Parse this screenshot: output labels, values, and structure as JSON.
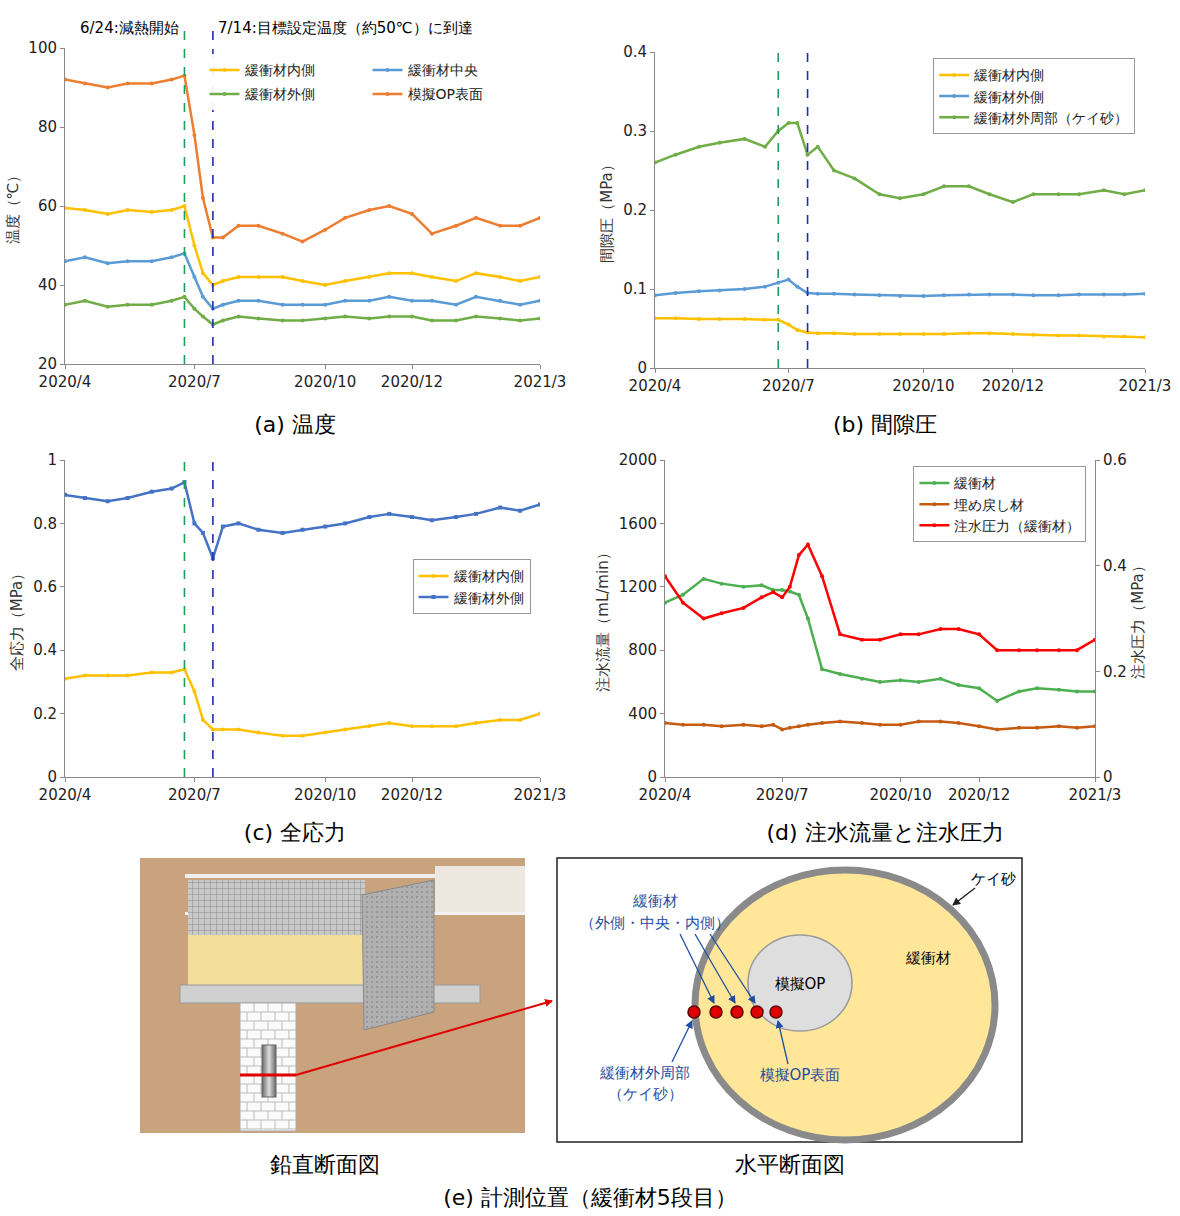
{
  "chart_data": [
    {
      "type": "line",
      "title": "(a) 温度",
      "ylabel": "温度（℃）",
      "grid": false,
      "legend": "top right",
      "x": [
        "2020-04-01",
        "2020-04-15",
        "2020-05-01",
        "2020-05-15",
        "2020-06-01",
        "2020-06-15",
        "2020-06-24",
        "2020-07-01",
        "2020-07-07",
        "2020-07-14",
        "2020-07-21",
        "2020-08-01",
        "2020-08-15",
        "2020-09-01",
        "2020-09-15",
        "2020-10-01",
        "2020-10-15",
        "2020-11-01",
        "2020-11-15",
        "2020-12-01",
        "2020-12-15",
        "2021-01-01",
        "2021-01-15",
        "2021-02-01",
        "2021-02-15",
        "2021-03-01"
      ],
      "xlim": [
        "2020-04-01",
        "2021-03-01"
      ],
      "xticks": [
        {
          "value": "2020-04-01",
          "label": "2020/4"
        },
        {
          "value": "2020-07-01",
          "label": "2020/7"
        },
        {
          "value": "2020-10-01",
          "label": "2020/10"
        },
        {
          "value": "2020-12-01",
          "label": "2020/12"
        },
        {
          "value": "2021-03-01",
          "label": "2021/3"
        }
      ],
      "ylim": [
        20,
        100
      ],
      "yticks": [
        20,
        40,
        60,
        80,
        100
      ],
      "series": [
        {
          "name": "緩衝材内側",
          "color": "#FFC000",
          "marker": "circle",
          "values": [
            59.5,
            59,
            58,
            59,
            58.5,
            59,
            60,
            50,
            43,
            40,
            41,
            42,
            42,
            42,
            41,
            40,
            41,
            42,
            43,
            43,
            42,
            41,
            43,
            42,
            41,
            42
          ]
        },
        {
          "name": "緩衝材中央",
          "color": "#5B9BD5",
          "marker": "circle",
          "values": [
            46,
            47,
            45.5,
            46,
            46,
            47,
            48,
            42,
            37,
            34,
            35,
            36,
            36,
            35,
            35,
            35,
            36,
            36,
            37,
            36,
            36,
            35,
            37,
            36,
            35,
            36
          ]
        },
        {
          "name": "緩衝材外側",
          "color": "#70AD47",
          "marker": "circle",
          "values": [
            35,
            36,
            34.5,
            35,
            35,
            36,
            37,
            34,
            32,
            30,
            31,
            32,
            31.5,
            31,
            31,
            31.5,
            32,
            31.5,
            32,
            32,
            31,
            31,
            32,
            31.5,
            31,
            31.5
          ]
        },
        {
          "name": "模擬OP表面",
          "color": "#ED7D31",
          "marker": "circle",
          "values": [
            92,
            91,
            90,
            91,
            91,
            92,
            93,
            78,
            62,
            52,
            52,
            55,
            55,
            53,
            51,
            54,
            57,
            59,
            60,
            58,
            53,
            55,
            57,
            55,
            55,
            57
          ]
        }
      ],
      "events": [
        {
          "x": "2020-06-24",
          "color": "#1E9E5A",
          "line_style": "dash"
        },
        {
          "x": "2020-07-14",
          "color": "#1F2FB0",
          "line_style": "dash"
        }
      ],
      "annotations": [
        {
          "x": "2020-06-24",
          "text": "6/24:減熱開始"
        },
        {
          "x": "2020-07-14",
          "text": "7/14:目標設定温度（約50℃）に到達"
        }
      ]
    },
    {
      "type": "line",
      "title": "(b) 間隙圧",
      "ylabel": "間隙圧（MPa）",
      "grid": false,
      "legend": "top right",
      "x": [
        "2020-04-01",
        "2020-04-15",
        "2020-05-01",
        "2020-05-15",
        "2020-06-01",
        "2020-06-15",
        "2020-06-24",
        "2020-07-01",
        "2020-07-07",
        "2020-07-14",
        "2020-07-21",
        "2020-08-01",
        "2020-08-15",
        "2020-09-01",
        "2020-09-15",
        "2020-10-01",
        "2020-10-15",
        "2020-11-01",
        "2020-11-15",
        "2020-12-01",
        "2020-12-15",
        "2021-01-01",
        "2021-01-15",
        "2021-02-01",
        "2021-02-15",
        "2021-03-01"
      ],
      "xlim": [
        "2020-04-01",
        "2021-03-01"
      ],
      "xticks": [
        {
          "value": "2020-04-01",
          "label": "2020/4"
        },
        {
          "value": "2020-07-01",
          "label": "2020/7"
        },
        {
          "value": "2020-10-01",
          "label": "2020/10"
        },
        {
          "value": "2020-12-01",
          "label": "2020/12"
        },
        {
          "value": "2021-03-01",
          "label": "2021/3"
        }
      ],
      "ylim": [
        0,
        0.4
      ],
      "yticks": [
        0,
        0.1,
        0.2,
        0.3,
        0.4
      ],
      "series": [
        {
          "name": "緩衝材内側",
          "color": "#FFC000",
          "marker": "circle",
          "values": [
            0.063,
            0.063,
            0.062,
            0.062,
            0.062,
            0.061,
            0.061,
            0.055,
            0.048,
            0.045,
            0.044,
            0.044,
            0.043,
            0.043,
            0.043,
            0.043,
            0.043,
            0.044,
            0.044,
            0.043,
            0.042,
            0.041,
            0.041,
            0.04,
            0.04,
            0.039
          ]
        },
        {
          "name": "緩衝材外側",
          "color": "#5B9BD5",
          "marker": "circle",
          "values": [
            0.092,
            0.095,
            0.097,
            0.098,
            0.1,
            0.103,
            0.108,
            0.112,
            0.103,
            0.095,
            0.094,
            0.094,
            0.093,
            0.092,
            0.091,
            0.091,
            0.092,
            0.093,
            0.093,
            0.093,
            0.092,
            0.092,
            0.093,
            0.093,
            0.093,
            0.094
          ]
        },
        {
          "name": "緩衝材外周部（ケイ砂）",
          "color": "#70AD47",
          "marker": "circle",
          "values": [
            0.26,
            0.27,
            0.28,
            0.285,
            0.29,
            0.28,
            0.3,
            0.31,
            0.31,
            0.27,
            0.28,
            0.25,
            0.24,
            0.22,
            0.215,
            0.22,
            0.23,
            0.23,
            0.22,
            0.21,
            0.22,
            0.22,
            0.22,
            0.225,
            0.22,
            0.225
          ]
        }
      ],
      "events": [
        {
          "x": "2020-06-24",
          "color": "#1E9E5A",
          "line_style": "dash"
        },
        {
          "x": "2020-07-14",
          "color": "#1F2FB0",
          "line_style": "dash"
        }
      ]
    },
    {
      "type": "line",
      "title": "(c) 全応力",
      "ylabel": "全応力（MPa）",
      "grid": false,
      "legend": "right",
      "x": [
        "2020-04-01",
        "2020-04-15",
        "2020-05-01",
        "2020-05-15",
        "2020-06-01",
        "2020-06-15",
        "2020-06-24",
        "2020-07-01",
        "2020-07-07",
        "2020-07-14",
        "2020-07-21",
        "2020-08-01",
        "2020-08-15",
        "2020-09-01",
        "2020-09-15",
        "2020-10-01",
        "2020-10-15",
        "2020-11-01",
        "2020-11-15",
        "2020-12-01",
        "2020-12-15",
        "2021-01-01",
        "2021-01-15",
        "2021-02-01",
        "2021-02-15",
        "2021-03-01"
      ],
      "xlim": [
        "2020-04-01",
        "2021-03-01"
      ],
      "xticks": [
        {
          "value": "2020-04-01",
          "label": "2020/4"
        },
        {
          "value": "2020-07-01",
          "label": "2020/7"
        },
        {
          "value": "2020-10-01",
          "label": "2020/10"
        },
        {
          "value": "2020-12-01",
          "label": "2020/12"
        },
        {
          "value": "2021-03-01",
          "label": "2021/3"
        }
      ],
      "ylim": [
        0,
        1
      ],
      "yticks": [
        0,
        0.2,
        0.4,
        0.6,
        0.8,
        1
      ],
      "series": [
        {
          "name": "緩衝材内側",
          "color": "#FFC000",
          "marker": "circle",
          "values": [
            0.31,
            0.32,
            0.32,
            0.32,
            0.33,
            0.33,
            0.34,
            0.27,
            0.18,
            0.15,
            0.15,
            0.15,
            0.14,
            0.13,
            0.13,
            0.14,
            0.15,
            0.16,
            0.17,
            0.16,
            0.16,
            0.16,
            0.17,
            0.18,
            0.18,
            0.2
          ]
        },
        {
          "name": "緩衝材外側",
          "color": "#4472C4",
          "marker": "square",
          "values": [
            0.89,
            0.88,
            0.87,
            0.88,
            0.9,
            0.91,
            0.93,
            0.8,
            0.77,
            0.69,
            0.79,
            0.8,
            0.78,
            0.77,
            0.78,
            0.79,
            0.8,
            0.82,
            0.83,
            0.82,
            0.81,
            0.82,
            0.83,
            0.85,
            0.84,
            0.86
          ]
        }
      ],
      "events": [
        {
          "x": "2020-06-24",
          "color": "#1E9E5A",
          "line_style": "dash"
        },
        {
          "x": "2020-07-14",
          "color": "#1F2FB0",
          "line_style": "dash"
        }
      ]
    },
    {
      "type": "line",
      "title": "(d) 注水流量と注水圧力",
      "ylabel": "注水流量（mL/min）",
      "y2label": "注水圧力（MPa）",
      "grid": false,
      "legend": "top right",
      "x": [
        "2020-04-01",
        "2020-04-15",
        "2020-05-01",
        "2020-05-15",
        "2020-06-01",
        "2020-06-15",
        "2020-06-24",
        "2020-07-01",
        "2020-07-07",
        "2020-07-14",
        "2020-07-21",
        "2020-08-01",
        "2020-08-15",
        "2020-09-01",
        "2020-09-15",
        "2020-10-01",
        "2020-10-15",
        "2020-11-01",
        "2020-11-15",
        "2020-12-01",
        "2020-12-15",
        "2021-01-01",
        "2021-01-15",
        "2021-02-01",
        "2021-02-15",
        "2021-03-01"
      ],
      "xlim": [
        "2020-04-01",
        "2021-03-01"
      ],
      "xticks": [
        {
          "value": "2020-04-01",
          "label": "2020/4"
        },
        {
          "value": "2020-07-01",
          "label": "2020/7"
        },
        {
          "value": "2020-10-01",
          "label": "2020/10"
        },
        {
          "value": "2020-12-01",
          "label": "2020/12"
        },
        {
          "value": "2021-03-01",
          "label": "2021/3"
        }
      ],
      "ylim": [
        0,
        2000
      ],
      "yticks": [
        0,
        400,
        800,
        1200,
        1600,
        2000
      ],
      "y2lim": [
        0,
        0.6
      ],
      "y2ticks": [
        0,
        0.2,
        0.4,
        0.6
      ],
      "series": [
        {
          "name": "緩衝材",
          "color": "#4CAF50",
          "marker": "circle",
          "values": [
            1100,
            1150,
            1250,
            1220,
            1200,
            1210,
            1180,
            1180,
            1170,
            1150,
            1000,
            680,
            650,
            620,
            600,
            610,
            600,
            620,
            580,
            560,
            480,
            540,
            560,
            550,
            540,
            540
          ]
        },
        {
          "name": "埋め戻し材",
          "color": "#C55A11",
          "marker": "circle",
          "values": [
            340,
            330,
            330,
            320,
            330,
            320,
            330,
            300,
            310,
            320,
            330,
            340,
            350,
            340,
            330,
            330,
            350,
            350,
            340,
            320,
            300,
            310,
            310,
            320,
            310,
            320
          ]
        },
        {
          "name": "注水圧力（緩衝材）",
          "color": "#FF0000",
          "marker": "circle",
          "axis": "y2",
          "values": [
            0.38,
            0.33,
            0.3,
            0.31,
            0.32,
            0.34,
            0.35,
            0.34,
            0.36,
            0.42,
            0.44,
            0.38,
            0.27,
            0.26,
            0.26,
            0.27,
            0.27,
            0.28,
            0.28,
            0.27,
            0.24,
            0.24,
            0.24,
            0.24,
            0.24,
            0.26
          ]
        }
      ]
    }
  ],
  "diagram": {
    "caption": "(e) 計測位置（緩衝材5段目）",
    "vertical_section": {
      "label": "鉛直断面図"
    },
    "horizontal_section": {
      "label": "水平断面図",
      "sand": "ケイ砂",
      "buffer": "緩衝材",
      "op": "模擬OP",
      "buffer_sensors": [
        "緩衝材",
        "（外側・中央・内側）"
      ],
      "sand_sensor": [
        "緩衝材外周部",
        "（ケイ砂）"
      ],
      "op_surface_sensor": "模擬OP表面"
    }
  }
}
